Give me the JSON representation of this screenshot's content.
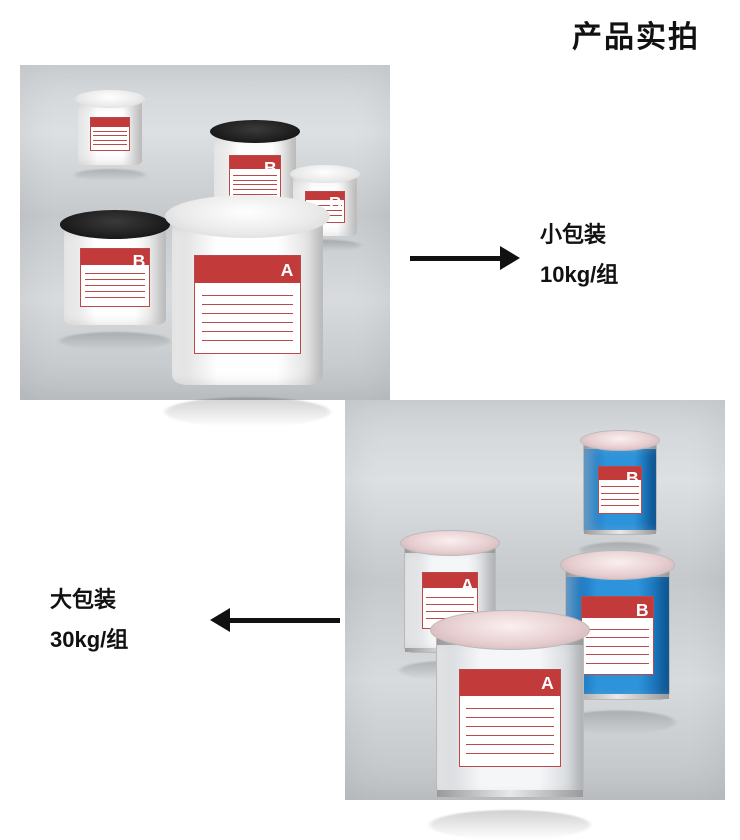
{
  "title": "产品实拍",
  "package_small": {
    "label1": "小包装",
    "label2": "10kg/组"
  },
  "package_large": {
    "label1": "大包装",
    "label2": "30kg/组"
  },
  "letters": {
    "a": "A",
    "b": "B"
  },
  "colors": {
    "accent_red": "#c23a3a",
    "metal_blue": "#2d93db",
    "text": "#111111",
    "panel_bg": "#cfd3d6"
  },
  "top_buckets": [
    {
      "lid": "white",
      "letter": "B"
    },
    {
      "lid": "black",
      "letter": "B"
    },
    {
      "lid": "white",
      "letter": "B"
    },
    {
      "lid": "black",
      "letter": "B"
    },
    {
      "lid": "white",
      "letter": "A"
    }
  ],
  "bottom_buckets": [
    {
      "body": "blue",
      "letter": "B"
    },
    {
      "body": "white",
      "letter": "A"
    },
    {
      "body": "blue",
      "letter": "B"
    },
    {
      "body": "white",
      "letter": "A"
    }
  ]
}
